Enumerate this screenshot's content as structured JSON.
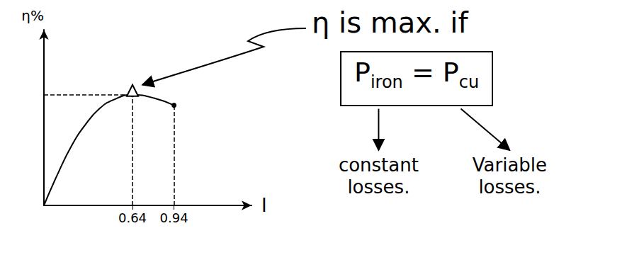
{
  "chart_data": {
    "type": "line",
    "x_label": "I",
    "y_label": "η%",
    "x": [
      0,
      0.1,
      0.2,
      0.3,
      0.4,
      0.5,
      0.64,
      0.8,
      0.94
    ],
    "values": [
      0,
      18,
      34,
      46,
      55,
      60,
      63,
      61,
      57
    ],
    "xlim": [
      0,
      1.5
    ],
    "ylim": [
      0,
      100
    ],
    "xticks": [
      0.64,
      0.94
    ],
    "tick_labels": "x",
    "grid": false,
    "color": "#000000",
    "line_style": "solid",
    "marker": "triangle"
  },
  "annotation": {
    "condition": "η is max. if",
    "equation": {
      "left": {
        "symbol": "P",
        "subscript": "iron"
      },
      "operator": "=",
      "right": {
        "symbol": "P",
        "subscript": "cu"
      }
    },
    "left_note": "constant losses.",
    "right_note": "Variable losses."
  }
}
